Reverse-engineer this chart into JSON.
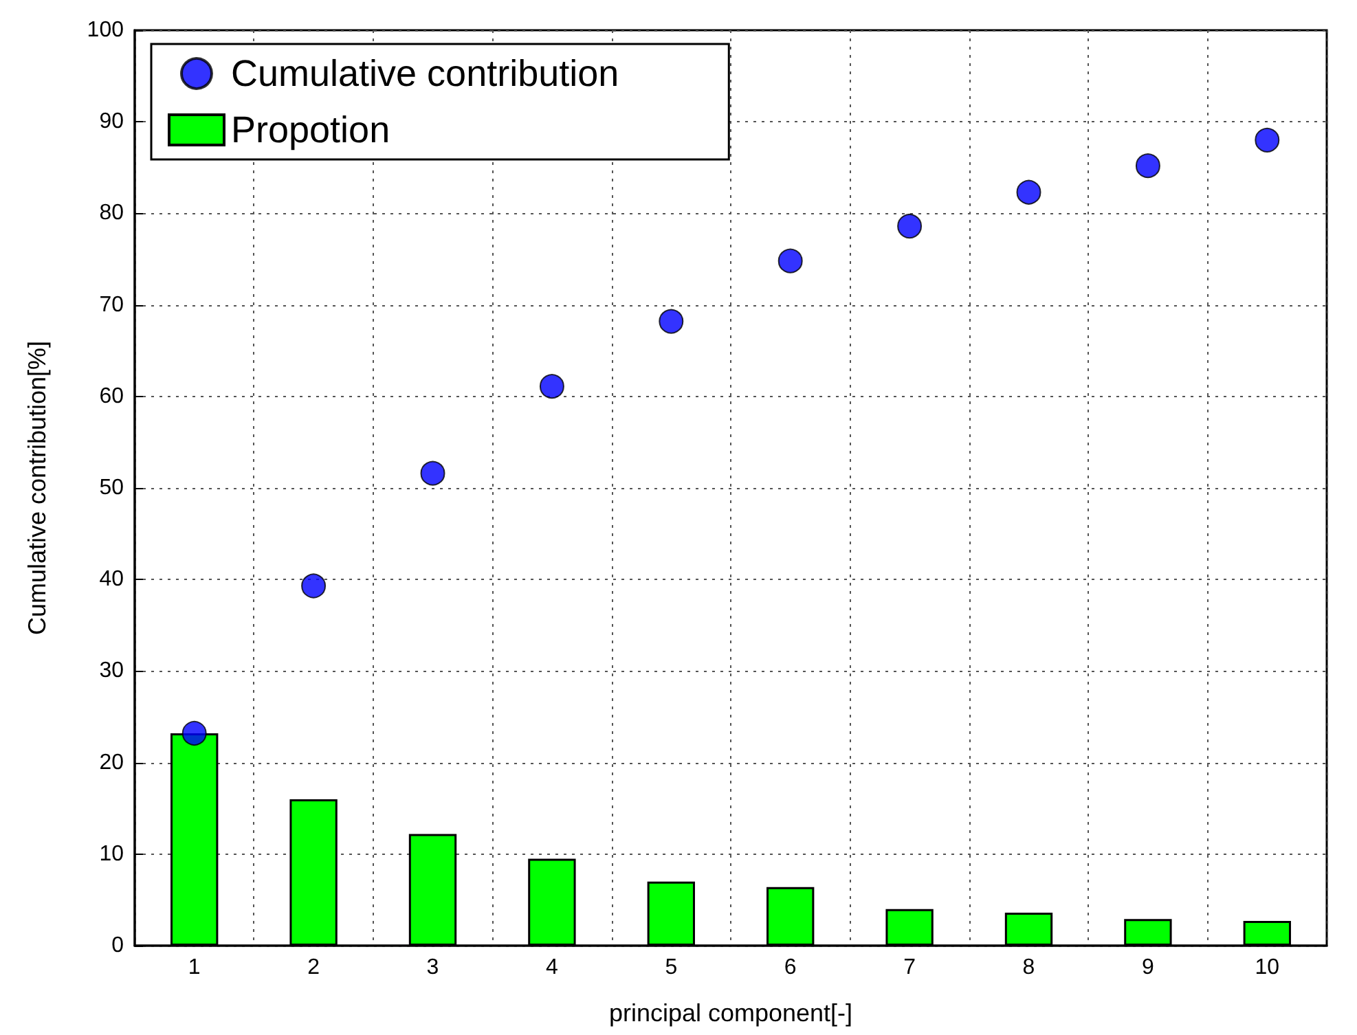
{
  "chart_data": {
    "type": "bar",
    "xlabel": "principal component[-]",
    "ylabel": "Cumulative contribution[%]",
    "categories": [
      "1",
      "2",
      "3",
      "4",
      "5",
      "6",
      "7",
      "8",
      "9",
      "10"
    ],
    "series": [
      {
        "name": "Cumulative contribution",
        "type": "scatter",
        "color": "#0000ff",
        "values": [
          23.2,
          39.3,
          51.6,
          61.1,
          68.2,
          74.8,
          78.6,
          82.3,
          85.2,
          88.0
        ]
      },
      {
        "name": "Propotion",
        "color": "#00ff00",
        "values": [
          23.2,
          16.0,
          12.2,
          9.5,
          7.0,
          6.4,
          4.0,
          3.6,
          2.9,
          2.7
        ]
      }
    ],
    "ylim": [
      0,
      100
    ],
    "yticks": [
      0,
      10,
      20,
      30,
      40,
      50,
      60,
      70,
      80,
      90,
      100
    ],
    "grid": true,
    "legend": "top left",
    "marker": "circle",
    "line_style": "dotted"
  }
}
